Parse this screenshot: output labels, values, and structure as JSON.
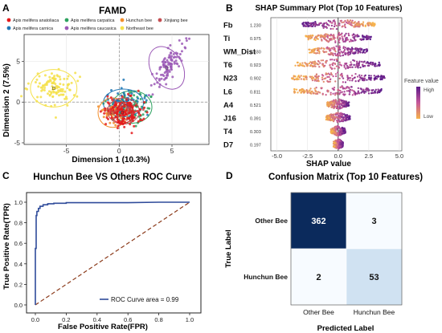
{
  "chart_data": [
    {
      "panel": "A",
      "type": "scatter",
      "title": "FAMD",
      "xlabel": "Dimension 1 (10.3%)",
      "ylabel": "Dimension 2 (7.5%)",
      "xlim": [
        -9,
        8.5
      ],
      "ylim": [
        -5.2,
        8.3
      ],
      "xticks": [
        -5,
        0,
        5
      ],
      "yticks": [
        -5,
        0,
        5
      ],
      "grid": true,
      "legend_position": "top",
      "series": [
        {
          "name": "Apis melifera anatoliaca",
          "color": "#e41a1c",
          "center": [
            0.3,
            -1.3
          ],
          "spread": [
            0.9,
            1.0
          ],
          "n": 120,
          "ellipse": [
            1.1,
            1.3
          ]
        },
        {
          "name": "Apis melifera carpatica",
          "color": "#2ca25f",
          "center": [
            1.2,
            -0.6
          ],
          "spread": [
            0.9,
            1.0
          ],
          "n": 100,
          "ellipse": [
            1.9,
            2.0
          ]
        },
        {
          "name": "Hunchun bee",
          "color": "#f28e2b",
          "center": [
            -0.6,
            -1.3
          ],
          "spread": [
            0.5,
            0.6
          ],
          "n": 50,
          "ellipse": [
            1.4,
            1.8
          ]
        },
        {
          "name": "Xinjiang bee",
          "color": "#c44e52",
          "center": [
            0.4,
            -1.1
          ],
          "spread": [
            0.7,
            0.7
          ],
          "n": 60,
          "ellipse": [
            1.5,
            1.6
          ]
        },
        {
          "name": "Apis melifera carnica",
          "color": "#1f77b4",
          "center": [
            0.4,
            -0.1
          ],
          "spread": [
            0.8,
            0.8
          ],
          "n": 70,
          "ellipse": [
            1.9,
            1.7
          ]
        },
        {
          "name": "Apis melifera caucasica",
          "color": "#9b59b6",
          "center": [
            4.5,
            4.2
          ],
          "spread": [
            0.9,
            1.3
          ],
          "n": 100,
          "ellipse": [
            1.5,
            2.8
          ]
        },
        {
          "name": "Northeast bee",
          "color": "#f5e14a",
          "center": [
            -6.2,
            1.7
          ],
          "spread": [
            1.0,
            1.0
          ],
          "n": 110,
          "ellipse": [
            2.2,
            2.3
          ]
        }
      ]
    },
    {
      "panel": "B",
      "type": "scatter",
      "title": "SHAP Summary Plot (Top 10 Features)",
      "xlabel": "SHAP value",
      "xlim": [
        -5.5,
        5.2
      ],
      "xticks": [
        -5.0,
        -2.5,
        0.0,
        2.5,
        5.0
      ],
      "features": [
        "Fb",
        "Ti",
        "WM_Dist",
        "T6",
        "N23",
        "L6",
        "A4",
        "J16",
        "T4",
        "D7"
      ],
      "mean_abs_shap": [
        "1.230",
        "0.975",
        "0.930",
        "0.923",
        "0.902",
        "0.811",
        "0.521",
        "0.391",
        "0.303",
        "0.197"
      ],
      "spread": [
        3.0,
        2.7,
        2.4,
        3.5,
        3.8,
        3.6,
        0.9,
        1.0,
        0.6,
        0.4
      ],
      "colorbar": {
        "title": "Feature value",
        "high": "High",
        "low": "Low",
        "high_color": "#5b1a8a",
        "low_color": "#f6b24a"
      }
    },
    {
      "panel": "C",
      "type": "line",
      "title": "Hunchun Bee VS Others ROC Curve",
      "xlabel": "False Positive Rate(FPR)",
      "ylabel": "True Positive Rate(TPR)",
      "xlim": [
        0,
        1
      ],
      "ylim": [
        0,
        1
      ],
      "xticks": [
        "0.0",
        "0.2",
        "0.4",
        "0.6",
        "0.8",
        "1.0"
      ],
      "yticks": [
        "0.0",
        "0.2",
        "0.4",
        "0.6",
        "0.8",
        "1.0"
      ],
      "roc_x": [
        0.0,
        0.0,
        0.005,
        0.005,
        0.01,
        0.01,
        0.02,
        0.02,
        0.03,
        0.03,
        0.05,
        0.05,
        0.08,
        0.08,
        0.12,
        0.12,
        0.2,
        0.2,
        0.4,
        0.6,
        0.8,
        1.0
      ],
      "roc_y": [
        0.0,
        0.55,
        0.55,
        0.87,
        0.87,
        0.91,
        0.91,
        0.94,
        0.94,
        0.96,
        0.96,
        0.975,
        0.975,
        0.985,
        0.985,
        0.99,
        0.99,
        0.995,
        0.995,
        0.995,
        1.0,
        1.0
      ],
      "legend": "ROC Curve area = 0.99",
      "line_color": "#2f4b9a",
      "diagonal_color": "#8b3a1a"
    },
    {
      "panel": "D",
      "type": "heatmap",
      "title": "Confusion Matrix (Top 10 Features)",
      "xlabel": "Predicted Label",
      "ylabel": "True Label",
      "row_labels": [
        "Other Bee",
        "Hunchun Bee"
      ],
      "col_labels": [
        "Other Bee",
        "Hunchun Bee"
      ],
      "values": [
        [
          362,
          3
        ],
        [
          2,
          53
        ]
      ],
      "cell_colors": [
        [
          "#0b2a5c",
          "#f7fbff"
        ],
        [
          "#f7fbff",
          "#d0e2f2"
        ]
      ]
    }
  ],
  "panel_letters": {
    "a": "A",
    "b": "B",
    "c": "C",
    "d": "D"
  }
}
